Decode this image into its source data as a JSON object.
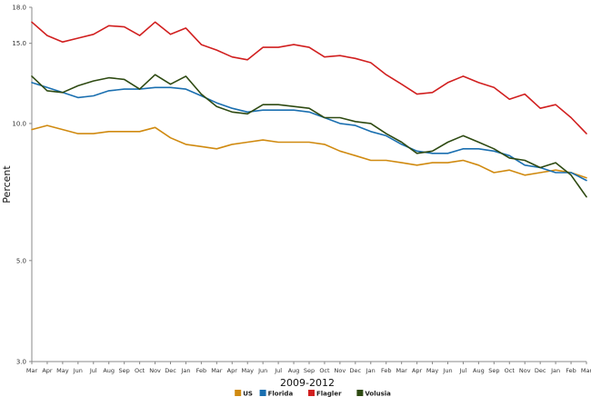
{
  "chart_data": {
    "type": "line",
    "title": "",
    "xlabel": "2009-2012",
    "ylabel": "Percent",
    "ylim": [
      3.0,
      18.0
    ],
    "yticks": [
      "18.0",
      "15.0",
      "10.0",
      "5.0",
      "3.0"
    ],
    "ytick_values": [
      18.0,
      15.0,
      10.0,
      5.0,
      3.0
    ],
    "grid": false,
    "legend_position": "bottom-center",
    "categories": [
      "Mar",
      "Apr",
      "May",
      "Jun",
      "Jul",
      "Aug",
      "Sep",
      "Oct",
      "Nov",
      "Dec",
      "Jan",
      "Feb",
      "Mar",
      "Apr",
      "May",
      "Jun",
      "Jul",
      "Aug",
      "Sep",
      "Oct",
      "Nov",
      "Dec",
      "Jan",
      "Feb",
      "Mar",
      "Apr",
      "May",
      "Jun",
      "Jul",
      "Aug",
      "Sep",
      "Oct",
      "Nov",
      "Dec",
      "Jan",
      "Feb",
      "Mar"
    ],
    "series": [
      {
        "name": "US",
        "color": "#d08a10",
        "values": [
          9.7,
          9.9,
          9.7,
          9.5,
          9.5,
          9.6,
          9.6,
          9.6,
          9.8,
          9.3,
          9.0,
          8.9,
          8.8,
          9.0,
          9.1,
          9.2,
          9.1,
          9.1,
          9.1,
          9.0,
          8.7,
          8.5,
          8.3,
          8.3,
          8.2,
          8.1,
          8.2,
          8.2,
          8.3,
          8.1,
          7.8,
          7.9,
          7.7,
          7.8,
          7.9,
          7.8,
          7.6
        ]
      },
      {
        "name": "Florida",
        "color": "#1a6fb0",
        "values": [
          12.3,
          12.0,
          11.7,
          11.4,
          11.5,
          11.8,
          11.9,
          11.9,
          12.0,
          12.0,
          11.9,
          11.5,
          11.1,
          10.8,
          10.6,
          10.7,
          10.7,
          10.7,
          10.6,
          10.3,
          10.0,
          9.9,
          9.6,
          9.4,
          9.0,
          8.7,
          8.6,
          8.6,
          8.8,
          8.8,
          8.7,
          8.5,
          8.1,
          8.0,
          7.8,
          7.8,
          7.5
        ]
      },
      {
        "name": "Flagler",
        "color": "#d11f1f",
        "values": [
          16.7,
          15.6,
          15.1,
          15.4,
          15.7,
          16.4,
          16.3,
          15.6,
          16.7,
          15.7,
          16.2,
          14.9,
          14.5,
          14.0,
          13.8,
          14.7,
          14.7,
          14.9,
          14.7,
          14.0,
          14.1,
          13.9,
          13.6,
          12.8,
          12.2,
          11.6,
          11.7,
          12.3,
          12.7,
          12.3,
          12.0,
          11.3,
          11.6,
          10.8,
          11.0,
          10.3,
          9.5
        ]
      },
      {
        "name": "Volusia",
        "color": "#2e4a12",
        "values": [
          12.7,
          11.8,
          11.7,
          12.1,
          12.4,
          12.6,
          12.5,
          11.9,
          12.8,
          12.2,
          12.7,
          11.6,
          10.9,
          10.6,
          10.5,
          11.0,
          11.0,
          10.9,
          10.8,
          10.3,
          10.3,
          10.1,
          10.0,
          9.5,
          9.1,
          8.6,
          8.7,
          9.1,
          9.4,
          9.1,
          8.8,
          8.4,
          8.3,
          8.0,
          8.2,
          7.7,
          6.9
        ]
      }
    ]
  }
}
